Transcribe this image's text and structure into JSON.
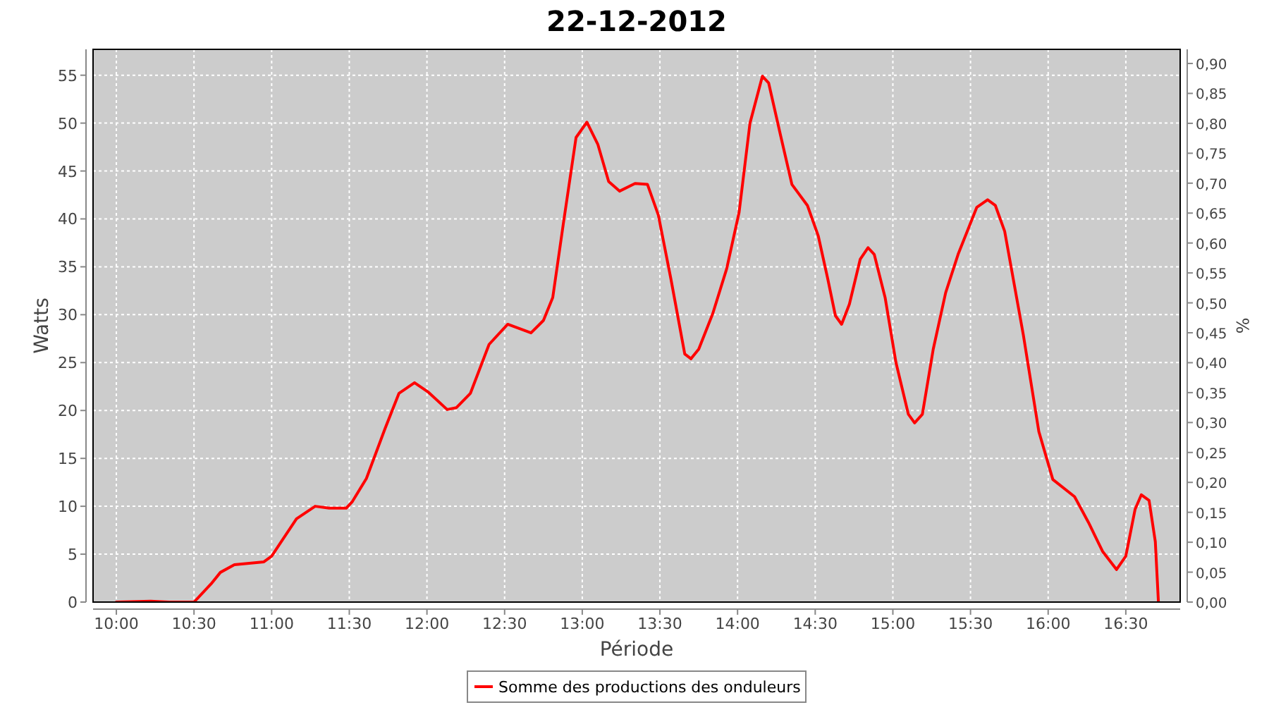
{
  "chart_data": {
    "type": "line",
    "title": "22-12-2012",
    "xlabel": "Période",
    "ylabel": "Watts",
    "y2label": "%",
    "xlim": [
      9.85,
      16.85
    ],
    "xticks": [
      {
        "value": 10,
        "label": "10:00"
      },
      {
        "value": 10.5,
        "label": "10:30"
      },
      {
        "value": 11,
        "label": "11:00"
      },
      {
        "value": 11.5,
        "label": "11:30"
      },
      {
        "value": 12,
        "label": "12:00"
      },
      {
        "value": 12.5,
        "label": "12:30"
      },
      {
        "value": 13,
        "label": "13:00"
      },
      {
        "value": 13.5,
        "label": "13:30"
      },
      {
        "value": 14,
        "label": "14:00"
      },
      {
        "value": 14.5,
        "label": "14:30"
      },
      {
        "value": 15,
        "label": "15:00"
      },
      {
        "value": 15.5,
        "label": "15:30"
      },
      {
        "value": 16,
        "label": "16:00"
      },
      {
        "value": 16.5,
        "label": "16:30"
      }
    ],
    "ylim": [
      0,
      57.7
    ],
    "yticks": [
      0,
      5,
      10,
      15,
      20,
      25,
      30,
      35,
      40,
      45,
      50,
      55
    ],
    "y2lim": [
      0,
      0.9236
    ],
    "y2ticks": [
      {
        "value": 0,
        "label": "0,00"
      },
      {
        "value": 0.05,
        "label": "0,05"
      },
      {
        "value": 0.1,
        "label": "0,10"
      },
      {
        "value": 0.15,
        "label": "0,15"
      },
      {
        "value": 0.2,
        "label": "0,20"
      },
      {
        "value": 0.25,
        "label": "0,25"
      },
      {
        "value": 0.3,
        "label": "0,30"
      },
      {
        "value": 0.35,
        "label": "0,35"
      },
      {
        "value": 0.4,
        "label": "0,40"
      },
      {
        "value": 0.45,
        "label": "0,45"
      },
      {
        "value": 0.5,
        "label": "0,50"
      },
      {
        "value": 0.55,
        "label": "0,55"
      },
      {
        "value": 0.6,
        "label": "0,60"
      },
      {
        "value": 0.65,
        "label": "0,65"
      },
      {
        "value": 0.7,
        "label": "0,70"
      },
      {
        "value": 0.75,
        "label": "0,75"
      },
      {
        "value": 0.8,
        "label": "0,80"
      },
      {
        "value": 0.85,
        "label": "0,85"
      },
      {
        "value": 0.9,
        "label": "0,90"
      }
    ],
    "grid": true,
    "legend": "bottom",
    "line_style": "solid",
    "series": [
      {
        "name": "Somme des productions des onduleurs",
        "color": "#ff0000",
        "x": [
          10,
          10.22,
          10.34,
          10.5,
          10.61,
          10.67,
          10.76,
          10.95,
          11,
          11.16,
          11.28,
          11.37,
          11.48,
          11.52,
          11.61,
          11.73,
          11.82,
          11.92,
          12.01,
          12.13,
          12.19,
          12.28,
          12.4,
          12.52,
          12.67,
          12.75,
          12.81,
          12.88,
          12.96,
          13.03,
          13.1,
          13.17,
          13.24,
          13.34,
          13.42,
          13.49,
          13.57,
          13.66,
          13.7,
          13.75,
          13.84,
          13.93,
          14.01,
          14.08,
          14.16,
          14.2,
          14.28,
          14.35,
          14.45,
          14.52,
          14.58,
          14.63,
          14.67,
          14.72,
          14.79,
          14.84,
          14.88,
          14.95,
          15.02,
          15.1,
          15.14,
          15.19,
          15.26,
          15.34,
          15.42,
          15.54,
          15.61,
          15.66,
          15.72,
          15.84,
          15.94,
          16.03,
          16.17,
          16.26,
          16.35,
          16.44,
          16.5,
          16.56,
          16.6,
          16.65,
          16.69,
          16.71
        ],
        "values": [
          0,
          0.1,
          0,
          0,
          1.9,
          3.1,
          3.9,
          4.2,
          4.8,
          8.7,
          10,
          9.8,
          9.8,
          10.5,
          12.9,
          18.1,
          21.8,
          22.9,
          21.9,
          20.1,
          20.3,
          21.8,
          26.9,
          29,
          28.1,
          29.4,
          31.8,
          39.7,
          48.5,
          50.1,
          47.8,
          43.9,
          42.9,
          43.7,
          43.6,
          40.4,
          33.8,
          25.9,
          25.4,
          26.4,
          30.1,
          34.8,
          40.7,
          50,
          54.9,
          54.2,
          48.5,
          43.6,
          41.4,
          38.2,
          33.8,
          29.9,
          29,
          31.1,
          35.8,
          37,
          36.3,
          31.8,
          25,
          19.6,
          18.7,
          19.6,
          26.4,
          32.3,
          36.3,
          41.2,
          42,
          41.4,
          38.7,
          27.9,
          17.8,
          12.8,
          11,
          8.3,
          5.3,
          3.4,
          4.8,
          9.7,
          11.2,
          10.6,
          6.3,
          0
        ]
      }
    ]
  }
}
